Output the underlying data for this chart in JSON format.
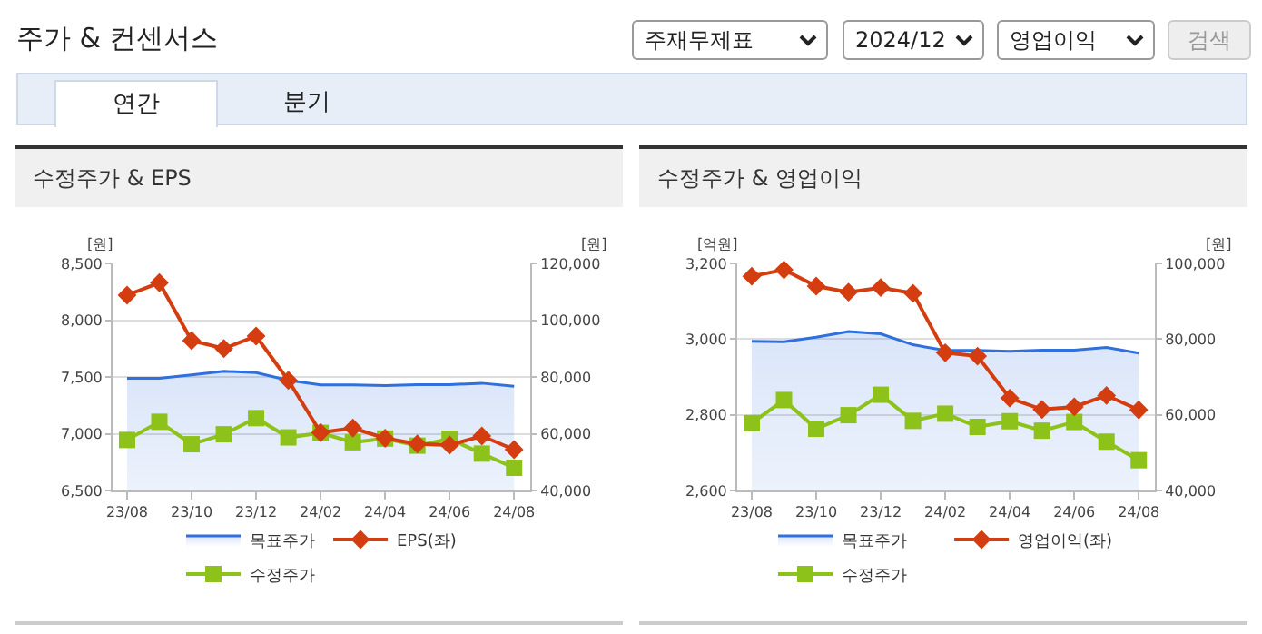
{
  "chart_data": [
    {
      "type": "line",
      "title": "수정주가 & EPS",
      "ylabel": "[원]",
      "y2label": "[원]",
      "annotations": [
        "주가 & 컨센서스",
        "주재무제표",
        "2024/12",
        "영업이익",
        "검색",
        "연간",
        "분기"
      ],
      "categories": [
        "23/08",
        null,
        "23/10",
        null,
        "23/12",
        null,
        "24/02",
        null,
        "24/04",
        null,
        "24/06",
        null,
        "24/08"
      ],
      "series": [
        {
          "name": "목표주가",
          "type": "area",
          "axis": "y2",
          "color": "#2f6fde",
          "marker": "none",
          "values": [
            79500,
            79500,
            80700,
            82000,
            81500,
            78800,
            77200,
            77200,
            77000,
            77300,
            77300,
            77800,
            76700
          ]
        },
        {
          "name": "EPS(좌)",
          "color": "#d33d0f",
          "marker": "diamond",
          "values": [
            8220,
            8330,
            7820,
            7750,
            7860,
            7470,
            7010,
            7050,
            6960,
            6910,
            6900,
            6980,
            6860
          ]
        },
        {
          "name": "수정주가",
          "axis": "y2",
          "color": "#8cc21a",
          "marker": "square",
          "values": [
            57800,
            64200,
            56300,
            59800,
            65500,
            58700,
            60300,
            57000,
            58300,
            55800,
            58200,
            53000,
            48000
          ]
        }
      ],
      "ylim": [
        6500,
        8500
      ],
      "yticks": [
        {
          "value": 6500,
          "label": "6,500"
        },
        {
          "value": 7000,
          "label": "7,000"
        },
        {
          "value": 7500,
          "label": "7,500"
        },
        {
          "value": 8000,
          "label": "8,000"
        },
        {
          "value": 8500,
          "label": "8,500"
        }
      ],
      "y2lim": [
        40000,
        120000
      ],
      "y2ticks": [
        {
          "value": 40000,
          "label": "40,000"
        },
        {
          "value": 60000,
          "label": "60,000"
        },
        {
          "value": 80000,
          "label": "80,000"
        },
        {
          "value": 100000,
          "label": "100,000"
        },
        {
          "value": 120000,
          "label": "120,000"
        }
      ],
      "grid": "y",
      "legend": "bottom"
    },
    {
      "type": "line",
      "title": "수정주가 & 영업이익",
      "ylabel": "[억원]",
      "y2label": "[원]",
      "categories": [
        "23/08",
        null,
        "23/10",
        null,
        "23/12",
        null,
        "24/02",
        null,
        "24/04",
        null,
        "24/06",
        null,
        "24/08"
      ],
      "series": [
        {
          "name": "목표주가",
          "type": "area",
          "axis": "y2",
          "color": "#2f6fde",
          "marker": "none",
          "values": [
            79400,
            79300,
            80500,
            82000,
            81400,
            78500,
            77000,
            77000,
            76800,
            77100,
            77100,
            77800,
            76300
          ]
        },
        {
          "name": "영업이익(좌)",
          "color": "#d33d0f",
          "marker": "diamond",
          "values": [
            3166,
            3183,
            3140,
            3124,
            3136,
            3121,
            2964,
            2955,
            2844,
            2814,
            2821,
            2851,
            2813
          ]
        },
        {
          "name": "수정주가",
          "axis": "y2",
          "color": "#8cc21a",
          "marker": "square",
          "values": [
            57800,
            63900,
            56300,
            59900,
            65300,
            58400,
            60300,
            56800,
            58300,
            55800,
            58100,
            52900,
            48000
          ]
        }
      ],
      "ylim": [
        2600,
        3200
      ],
      "yticks": [
        {
          "value": 2600,
          "label": "2,600"
        },
        {
          "value": 2800,
          "label": "2,800"
        },
        {
          "value": 3000,
          "label": "3,000"
        },
        {
          "value": 3200,
          "label": "3,200"
        }
      ],
      "y2lim": [
        40000,
        100000
      ],
      "y2ticks": [
        {
          "value": 40000,
          "label": "40,000"
        },
        {
          "value": 60000,
          "label": "60,000"
        },
        {
          "value": 80000,
          "label": "80,000"
        },
        {
          "value": 100000,
          "label": "100,000"
        }
      ],
      "grid": "y",
      "legend": "bottom"
    }
  ]
}
